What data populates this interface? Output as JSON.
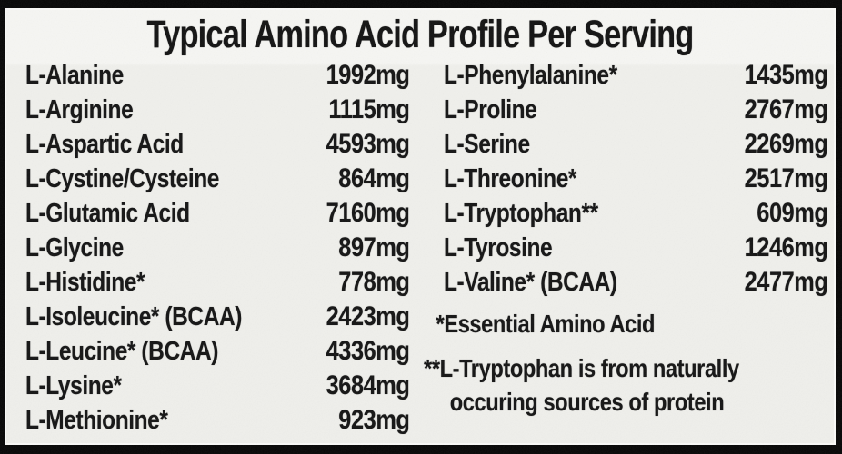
{
  "title": "Typical Amino Acid Profile Per Serving",
  "table": {
    "left_column": [
      {
        "name": "L-Alanine",
        "value": "1992mg"
      },
      {
        "name": "L-Arginine",
        "value": "1115mg"
      },
      {
        "name": "L-Aspartic Acid",
        "value": "4593mg"
      },
      {
        "name": "L-Cystine/Cysteine",
        "value": "864mg"
      },
      {
        "name": "L-Glutamic Acid",
        "value": "7160mg"
      },
      {
        "name": "L-Glycine",
        "value": "897mg"
      },
      {
        "name": "L-Histidine*",
        "value": "778mg"
      },
      {
        "name": "L-Isoleucine* (BCAA)",
        "value": "2423mg"
      },
      {
        "name": "L-Leucine* (BCAA)",
        "value": "4336mg"
      },
      {
        "name": "L-Lysine*",
        "value": "3684mg"
      },
      {
        "name": "L-Methionine*",
        "value": "923mg"
      }
    ],
    "right_column": [
      {
        "name": "L-Phenylalanine*",
        "value": "1435mg"
      },
      {
        "name": "L-Proline",
        "value": "2767mg"
      },
      {
        "name": "L-Serine",
        "value": "2269mg"
      },
      {
        "name": "L-Threonine*",
        "value": "2517mg"
      },
      {
        "name": "L-Tryptophan**",
        "value": "609mg"
      },
      {
        "name": "L-Tyrosine",
        "value": "1246mg"
      },
      {
        "name": "L-Valine* (BCAA)",
        "value": "2477mg"
      }
    ]
  },
  "footnotes": {
    "essential": "*Essential Amino Acid",
    "tryptophan_line1": "**L-Tryptophan is from naturally",
    "tryptophan_line2": "occuring sources of protein"
  },
  "colors": {
    "border": "#060606",
    "background": "#f0f0ec",
    "text": "#141414"
  }
}
